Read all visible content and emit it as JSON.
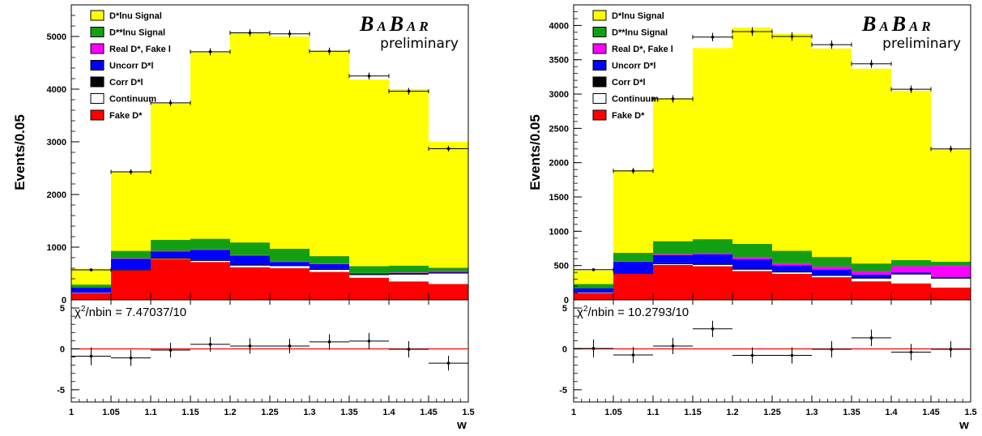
{
  "colors": {
    "signal": "#ffff00",
    "dstarstar": "#12a012",
    "realfake": "#ff00ff",
    "uncorr": "#0000ff",
    "corr": "#000000",
    "continuum": "#ffffff",
    "fake": "#ff0000",
    "fit_line": "#ff0000"
  },
  "chart_data": [
    {
      "type": "bar",
      "stacked": true,
      "xlabel": "w",
      "ylabel": "Events/0.05",
      "x_edges": [
        1.0,
        1.05,
        1.1,
        1.15,
        1.2,
        1.25,
        1.3,
        1.35,
        1.4,
        1.45,
        1.5
      ],
      "xlim": [
        1.0,
        1.5
      ],
      "x_ticks": [
        "1",
        "1.05",
        "1.1",
        "1.15",
        "1.2",
        "1.25",
        "1.3",
        "1.35",
        "1.4",
        "1.45",
        "1.5"
      ],
      "ylim": [
        0,
        5600
      ],
      "y_ticks": [
        0,
        1000,
        2000,
        3000,
        4000,
        5000
      ],
      "legend_position": "top-left",
      "badge": {
        "title": "BABAR",
        "subtitle": "preliminary"
      },
      "series": [
        {
          "name": "Fake D*",
          "color_key": "fake",
          "values": [
            130,
            560,
            780,
            720,
            620,
            600,
            530,
            420,
            350,
            300
          ]
        },
        {
          "name": "Continuum",
          "color_key": "continuum",
          "values": [
            5,
            0,
            5,
            20,
            30,
            40,
            40,
            50,
            130,
            200
          ]
        },
        {
          "name": "Corr D*l",
          "color_key": "corr",
          "values": [
            5,
            10,
            15,
            20,
            20,
            20,
            20,
            20,
            20,
            20
          ]
        },
        {
          "name": "Uncorr D*l",
          "color_key": "uncorr",
          "values": [
            90,
            210,
            120,
            190,
            170,
            60,
            90,
            10,
            10,
            10
          ]
        },
        {
          "name": "Real D*, Fake l",
          "color_key": "realfake",
          "values": [
            0,
            10,
            10,
            10,
            10,
            10,
            10,
            10,
            10,
            20
          ]
        },
        {
          "name": "D**lnu Signal",
          "color_key": "dstarstar",
          "values": [
            60,
            140,
            210,
            200,
            240,
            240,
            140,
            130,
            130,
            60
          ]
        },
        {
          "name": "D*lnu Signal",
          "color_key": "signal",
          "values": [
            300,
            1510,
            2600,
            3540,
            3990,
            4030,
            3900,
            3540,
            3350,
            2390
          ]
        }
      ],
      "data_points": {
        "values": [
          570,
          2430,
          3740,
          4710,
          5070,
          5050,
          4720,
          4250,
          3960,
          2870
        ],
        "errors": [
          24,
          49,
          61,
          69,
          71,
          71,
          69,
          65,
          63,
          54
        ]
      },
      "residuals": {
        "label_prefix": "χ",
        "label_sup": "2",
        "label_suffix": "/nbin = 7.47037/10",
        "ylim": [
          -6.5,
          6
        ],
        "y_ticks": [
          -5,
          0,
          5
        ],
        "values": [
          -0.9,
          -1.1,
          -0.15,
          0.55,
          0.35,
          0.35,
          0.85,
          0.95,
          -0.05,
          -1.75
        ],
        "errors": [
          1.1,
          1.0,
          0.9,
          0.9,
          0.95,
          0.9,
          0.95,
          1.0,
          1.0,
          0.9
        ]
      }
    },
    {
      "type": "bar",
      "stacked": true,
      "xlabel": "w",
      "ylabel": "Events/0.05",
      "x_edges": [
        1.0,
        1.05,
        1.1,
        1.15,
        1.2,
        1.25,
        1.3,
        1.35,
        1.4,
        1.45,
        1.5
      ],
      "xlim": [
        1.0,
        1.5
      ],
      "x_ticks": [
        "1",
        "1.05",
        "1.1",
        "1.15",
        "1.2",
        "1.25",
        "1.3",
        "1.35",
        "1.4",
        "1.45",
        "1.5"
      ],
      "ylim": [
        0,
        4300
      ],
      "y_ticks": [
        0,
        500,
        1000,
        1500,
        2000,
        2500,
        3000,
        3500,
        4000
      ],
      "legend_position": "top-left",
      "badge": {
        "title": "BABAR",
        "subtitle": "preliminary"
      },
      "series": [
        {
          "name": "Fake D*",
          "color_key": "fake",
          "values": [
            100,
            380,
            510,
            490,
            420,
            380,
            330,
            270,
            240,
            180
          ]
        },
        {
          "name": "Continuum",
          "color_key": "continuum",
          "values": [
            5,
            0,
            10,
            20,
            20,
            20,
            20,
            40,
            130,
            130
          ]
        },
        {
          "name": "Corr D*l",
          "color_key": "corr",
          "values": [
            5,
            10,
            15,
            15,
            15,
            15,
            15,
            20,
            15,
            15
          ]
        },
        {
          "name": "Uncorr D*l",
          "color_key": "uncorr",
          "values": [
            60,
            165,
            115,
            140,
            140,
            90,
            80,
            40,
            15,
            10
          ]
        },
        {
          "name": "Real D*, Fake l",
          "color_key": "realfake",
          "values": [
            0,
            10,
            15,
            20,
            30,
            30,
            40,
            50,
            90,
            160
          ]
        },
        {
          "name": "D**lnu Signal",
          "color_key": "dstarstar",
          "values": [
            60,
            120,
            190,
            200,
            190,
            180,
            140,
            110,
            90,
            60
          ]
        },
        {
          "name": "D*lnu Signal",
          "color_key": "signal",
          "values": [
            200,
            1205,
            2085,
            2785,
            3155,
            3165,
            3040,
            2840,
            2470,
            1635
          ]
        }
      ],
      "data_points": {
        "values": [
          440,
          1880,
          2930,
          3830,
          3910,
          3840,
          3720,
          3440,
          3070,
          2200
        ],
        "errors": [
          21,
          43,
          54,
          62,
          63,
          62,
          61,
          59,
          55,
          47
        ]
      },
      "residuals": {
        "label_prefix": "χ",
        "label_sup": "2",
        "label_suffix": "/nbin = 10.2793/10",
        "ylim": [
          -6.5,
          6
        ],
        "y_ticks": [
          -5,
          0,
          5
        ],
        "values": [
          0.05,
          -0.75,
          0.35,
          2.45,
          -0.8,
          -0.8,
          -0.05,
          1.35,
          -0.4,
          -0.05
        ],
        "errors": [
          1.1,
          1.0,
          1.0,
          1.0,
          1.0,
          1.0,
          1.0,
          1.0,
          1.0,
          1.0
        ]
      }
    }
  ]
}
